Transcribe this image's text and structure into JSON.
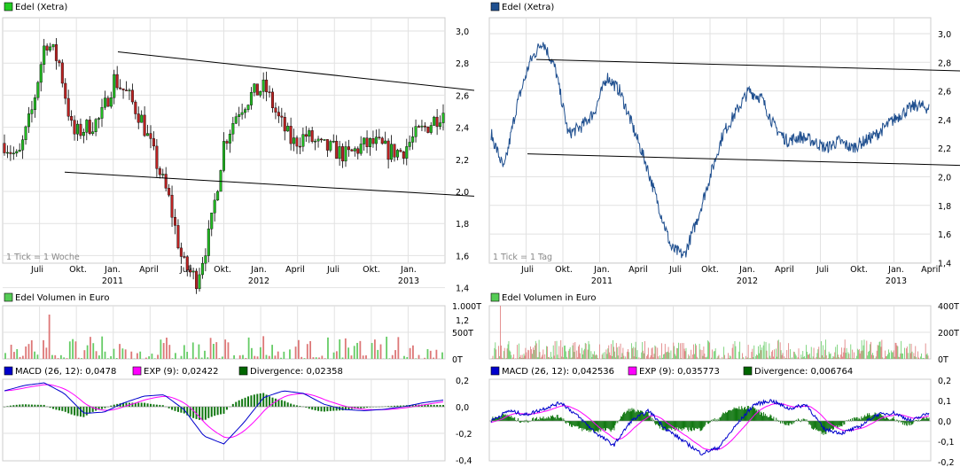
{
  "chart_data": [
    {
      "type": "line",
      "panel": "price-weekly-candles",
      "legend": "Edel (Xetra)",
      "legend_color": "#22cc22",
      "note": "1 Tick = 1 Woche",
      "y_ticks": [
        "3,0",
        "2,8",
        "2,6",
        "2,4",
        "2,2",
        "2,0",
        "1,8",
        "1,6",
        "1,4",
        "1,2"
      ],
      "ylim": [
        1.2,
        3.0
      ],
      "x_month_labels": [
        "Juli",
        "Okt.",
        "Jan.",
        "April",
        "Juli",
        "Okt.",
        "Jan.",
        "April",
        "Juli",
        "Okt.",
        "Jan."
      ],
      "x_year_labels": [
        "2011",
        "2012",
        "2013"
      ],
      "x": [
        "2010-07",
        "2010-08",
        "2010-09",
        "2010-10",
        "2010-11",
        "2010-12",
        "2011-01",
        "2011-02",
        "2011-03",
        "2011-04",
        "2011-05",
        "2011-06",
        "2011-07",
        "2011-08",
        "2011-09",
        "2011-10",
        "2011-11",
        "2011-12",
        "2012-01",
        "2012-02",
        "2012-03",
        "2012-04",
        "2012-05",
        "2012-06",
        "2012-07",
        "2012-08",
        "2012-09",
        "2012-10",
        "2012-11",
        "2012-12",
        "2013-01",
        "2013-02",
        "2013-03"
      ],
      "values": [
        2.3,
        2.2,
        2.5,
        2.95,
        2.8,
        2.35,
        2.4,
        2.45,
        2.7,
        2.6,
        2.45,
        2.2,
        1.95,
        1.55,
        1.45,
        1.75,
        2.3,
        2.5,
        2.6,
        2.65,
        2.45,
        2.3,
        2.35,
        2.28,
        2.26,
        2.22,
        2.28,
        2.3,
        2.25,
        2.25,
        2.35,
        2.42,
        2.5
      ],
      "trendlines": [
        [
          2.87,
          2.63
        ],
        [
          2.12,
          1.97
        ]
      ]
    },
    {
      "type": "line",
      "panel": "price-daily-line",
      "legend": "Edel (Xetra)",
      "legend_color": "#1f4f8f",
      "note": "1 Tick = 1 Tag",
      "y_ticks": [
        "3,0",
        "2,8",
        "2,6",
        "2,4",
        "2,2",
        "2,0",
        "1,8",
        "1,6",
        "1,4"
      ],
      "ylim": [
        1.4,
        3.0
      ],
      "x_month_labels": [
        "Juli",
        "Okt.",
        "Jan.",
        "April",
        "Juli",
        "Okt.",
        "Jan.",
        "April",
        "Juli",
        "Okt.",
        "Jan.",
        "April"
      ],
      "x_year_labels": [
        "2011",
        "2012",
        "2013"
      ],
      "x": [
        "2010-06",
        "2010-07",
        "2010-08",
        "2010-09",
        "2010-10",
        "2010-11",
        "2010-12",
        "2011-01",
        "2011-02",
        "2011-03",
        "2011-04",
        "2011-05",
        "2011-06",
        "2011-07",
        "2011-08",
        "2011-09",
        "2011-10",
        "2011-11",
        "2011-12",
        "2012-01",
        "2012-02",
        "2012-03",
        "2012-04",
        "2012-05",
        "2012-06",
        "2012-07",
        "2012-08",
        "2012-09",
        "2012-10",
        "2012-11",
        "2012-12",
        "2013-01",
        "2013-02",
        "2013-03",
        "2013-04"
      ],
      "values": [
        2.3,
        2.05,
        2.5,
        2.8,
        2.95,
        2.75,
        2.3,
        2.35,
        2.45,
        2.7,
        2.6,
        2.35,
        2.1,
        1.8,
        1.5,
        1.45,
        1.7,
        2.0,
        2.3,
        2.45,
        2.6,
        2.55,
        2.35,
        2.25,
        2.28,
        2.25,
        2.2,
        2.25,
        2.2,
        2.25,
        2.3,
        2.38,
        2.45,
        2.5,
        2.48
      ],
      "trendlines": [
        [
          2.82,
          2.74
        ],
        [
          2.16,
          2.08
        ]
      ]
    },
    {
      "type": "bar",
      "panel": "volume-weekly",
      "legend": "Edel Volumen in Euro",
      "legend_color": "#55cc55",
      "y_ticks": [
        "1.000T",
        "500T",
        "0T"
      ],
      "ylim": [
        0,
        1000
      ]
    },
    {
      "type": "bar",
      "panel": "volume-daily",
      "legend": "Edel Volumen in Euro",
      "legend_color": "#55cc55",
      "y_ticks": [
        "400T",
        "200T",
        "0T"
      ],
      "ylim": [
        0,
        400
      ]
    },
    {
      "type": "line",
      "panel": "macd-weekly",
      "legend_items": [
        {
          "label": "MACD (26, 12): 0,0478",
          "color": "#0000cc"
        },
        {
          "label": "EXP (9): 0,02422",
          "color": "#ff00ff"
        },
        {
          "label": "Divergence: 0,02358",
          "color": "#006600"
        }
      ],
      "y_ticks": [
        "0,2",
        "0,0",
        "-0,2",
        "-0,4"
      ],
      "ylim": [
        -0.4,
        0.2
      ]
    },
    {
      "type": "line",
      "panel": "macd-daily",
      "legend_items": [
        {
          "label": "MACD (26, 12): 0,042536",
          "color": "#0000cc"
        },
        {
          "label": "EXP (9): 0,035773",
          "color": "#ff00ff"
        },
        {
          "label": "Divergence: 0,006764",
          "color": "#006600"
        }
      ],
      "y_ticks": [
        "0,2",
        "0,1",
        "0,0",
        "-0,1",
        "-0,2"
      ],
      "ylim": [
        -0.2,
        0.2
      ]
    }
  ]
}
